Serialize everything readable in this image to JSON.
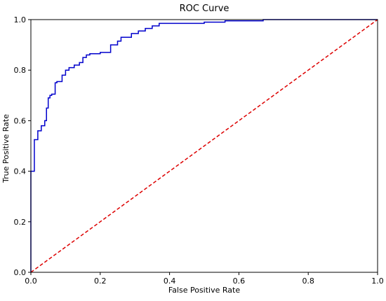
{
  "chart_data": {
    "type": "line",
    "title": "ROC Curve",
    "xlabel": "False Positive Rate",
    "ylabel": "True Positive Rate",
    "xlim": [
      0.0,
      1.0
    ],
    "ylim": [
      0.0,
      1.0
    ],
    "xticks": [
      "0.0",
      "0.2",
      "0.4",
      "0.6",
      "0.8",
      "1.0"
    ],
    "yticks": [
      "0.0",
      "0.2",
      "0.4",
      "0.6",
      "0.8",
      "1.0"
    ],
    "grid": false,
    "legend": null,
    "series": [
      {
        "style": "solid",
        "color": "#0000cc",
        "x": [
          0.0,
          0.0,
          0.01,
          0.01,
          0.02,
          0.02,
          0.03,
          0.03,
          0.04,
          0.04,
          0.045,
          0.045,
          0.05,
          0.05,
          0.055,
          0.055,
          0.06,
          0.06,
          0.07,
          0.07,
          0.075,
          0.075,
          0.09,
          0.09,
          0.1,
          0.1,
          0.11,
          0.11,
          0.125,
          0.125,
          0.14,
          0.14,
          0.15,
          0.15,
          0.16,
          0.16,
          0.17,
          0.17,
          0.2,
          0.2,
          0.23,
          0.23,
          0.25,
          0.25,
          0.26,
          0.26,
          0.29,
          0.29,
          0.31,
          0.31,
          0.33,
          0.33,
          0.35,
          0.35,
          0.37,
          0.37,
          0.4,
          0.4,
          0.5,
          0.5,
          0.56,
          0.56,
          0.67,
          0.67,
          1.0
        ],
        "y": [
          0.0,
          0.4,
          0.4,
          0.525,
          0.525,
          0.56,
          0.56,
          0.58,
          0.58,
          0.6,
          0.6,
          0.65,
          0.65,
          0.69,
          0.69,
          0.7,
          0.7,
          0.705,
          0.705,
          0.75,
          0.75,
          0.755,
          0.755,
          0.78,
          0.78,
          0.8,
          0.8,
          0.81,
          0.81,
          0.82,
          0.82,
          0.83,
          0.83,
          0.85,
          0.85,
          0.86,
          0.86,
          0.865,
          0.865,
          0.87,
          0.87,
          0.9,
          0.9,
          0.915,
          0.915,
          0.93,
          0.93,
          0.945,
          0.945,
          0.955,
          0.955,
          0.965,
          0.965,
          0.975,
          0.975,
          0.985,
          0.985,
          0.985,
          0.985,
          0.99,
          0.99,
          0.995,
          0.995,
          1.0,
          1.0
        ]
      },
      {
        "style": "dashed",
        "color": "#dd0000",
        "x": [
          0.0,
          1.0
        ],
        "y": [
          0.0,
          1.0
        ]
      }
    ]
  }
}
